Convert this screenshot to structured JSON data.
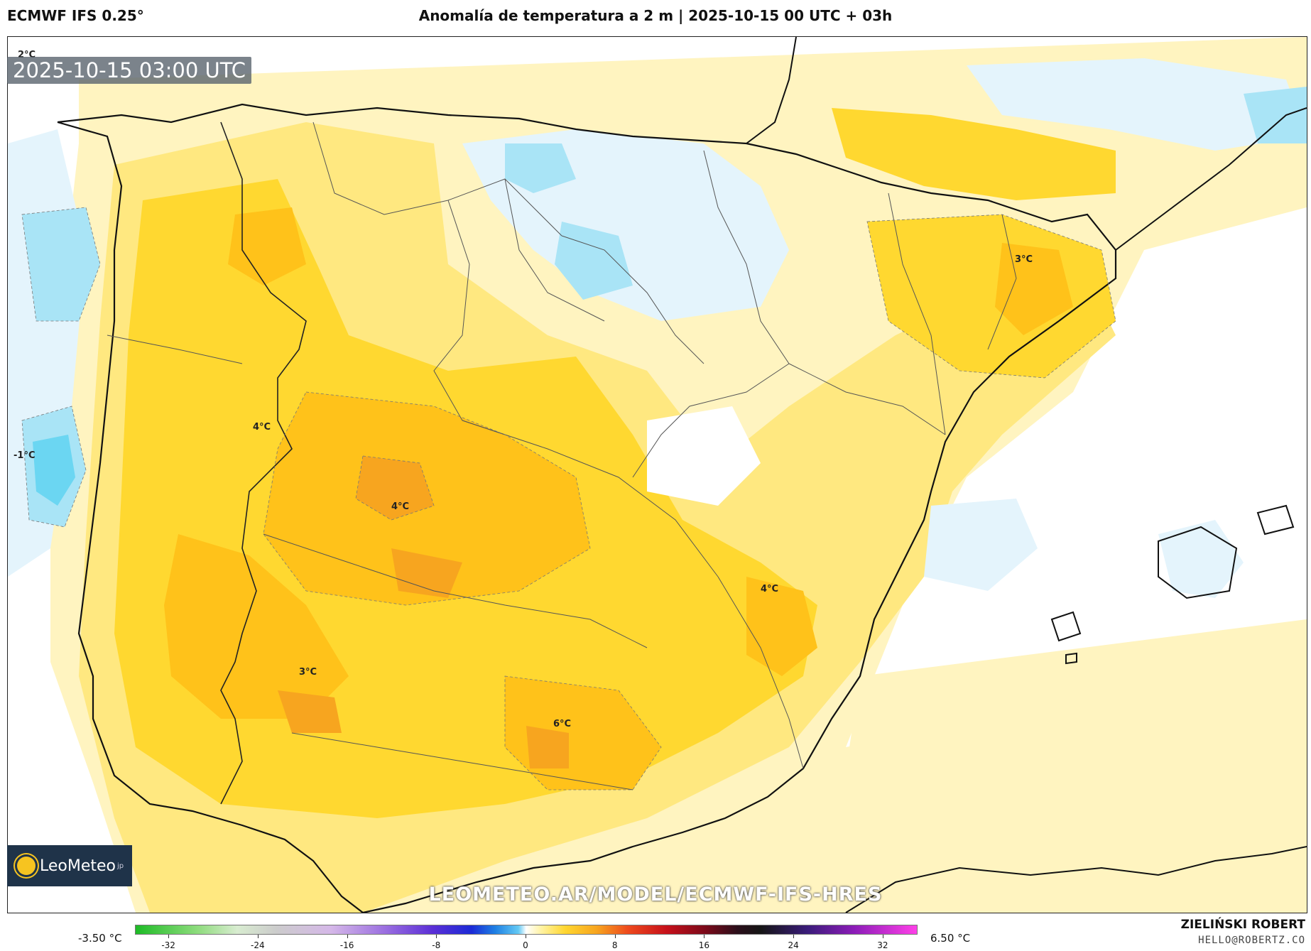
{
  "header": {
    "model": "ECMWF IFS 0.25°",
    "title": "Anomalía de temperatura a 2 m | 2025-10-15 00 UTC + 03h"
  },
  "map": {
    "timestamp": "2025-10-15 03:00 UTC",
    "labels": {
      "l_2c": "2°C",
      "l_m1c": "-1°C",
      "l_4c_a": "4°C",
      "l_4c_b": "4°C",
      "l_4c_c": "4°C",
      "l_3c_a": "3°C",
      "l_3c_b": "3°C",
      "l_6c": "6°C"
    },
    "colors": {
      "ocean": "#ffffff",
      "pale_yellow": "#fff4c0",
      "light_yellow": "#ffe880",
      "yellow": "#ffd830",
      "gold": "#ffc21a",
      "orange": "#f7a51f",
      "light_blue": "#e4f4fc",
      "blue": "#a9e4f6",
      "cyan": "#6bd6f2",
      "coast": "#111111",
      "border": "#555555"
    }
  },
  "branding": {
    "logo_name": "LeoMeteo",
    "logo_suffix": "jp",
    "url": "LEOMETEO.AR/MODEL/ECMWF-IFS-HRES",
    "author": "ZIELIŃSKI ROBERT",
    "email": "HELLO@ROBERTZ.CO"
  },
  "colorbar": {
    "min_label": "-3.50 °C",
    "max_label": "6.50 °C",
    "ticks": [
      "-32",
      "-24",
      "-16",
      "-8",
      "0",
      "8",
      "16",
      "24",
      "32"
    ],
    "tick_values": [
      -32,
      -24,
      -16,
      -8,
      0,
      8,
      16,
      24,
      32
    ],
    "range": [
      -35,
      35
    ]
  }
}
